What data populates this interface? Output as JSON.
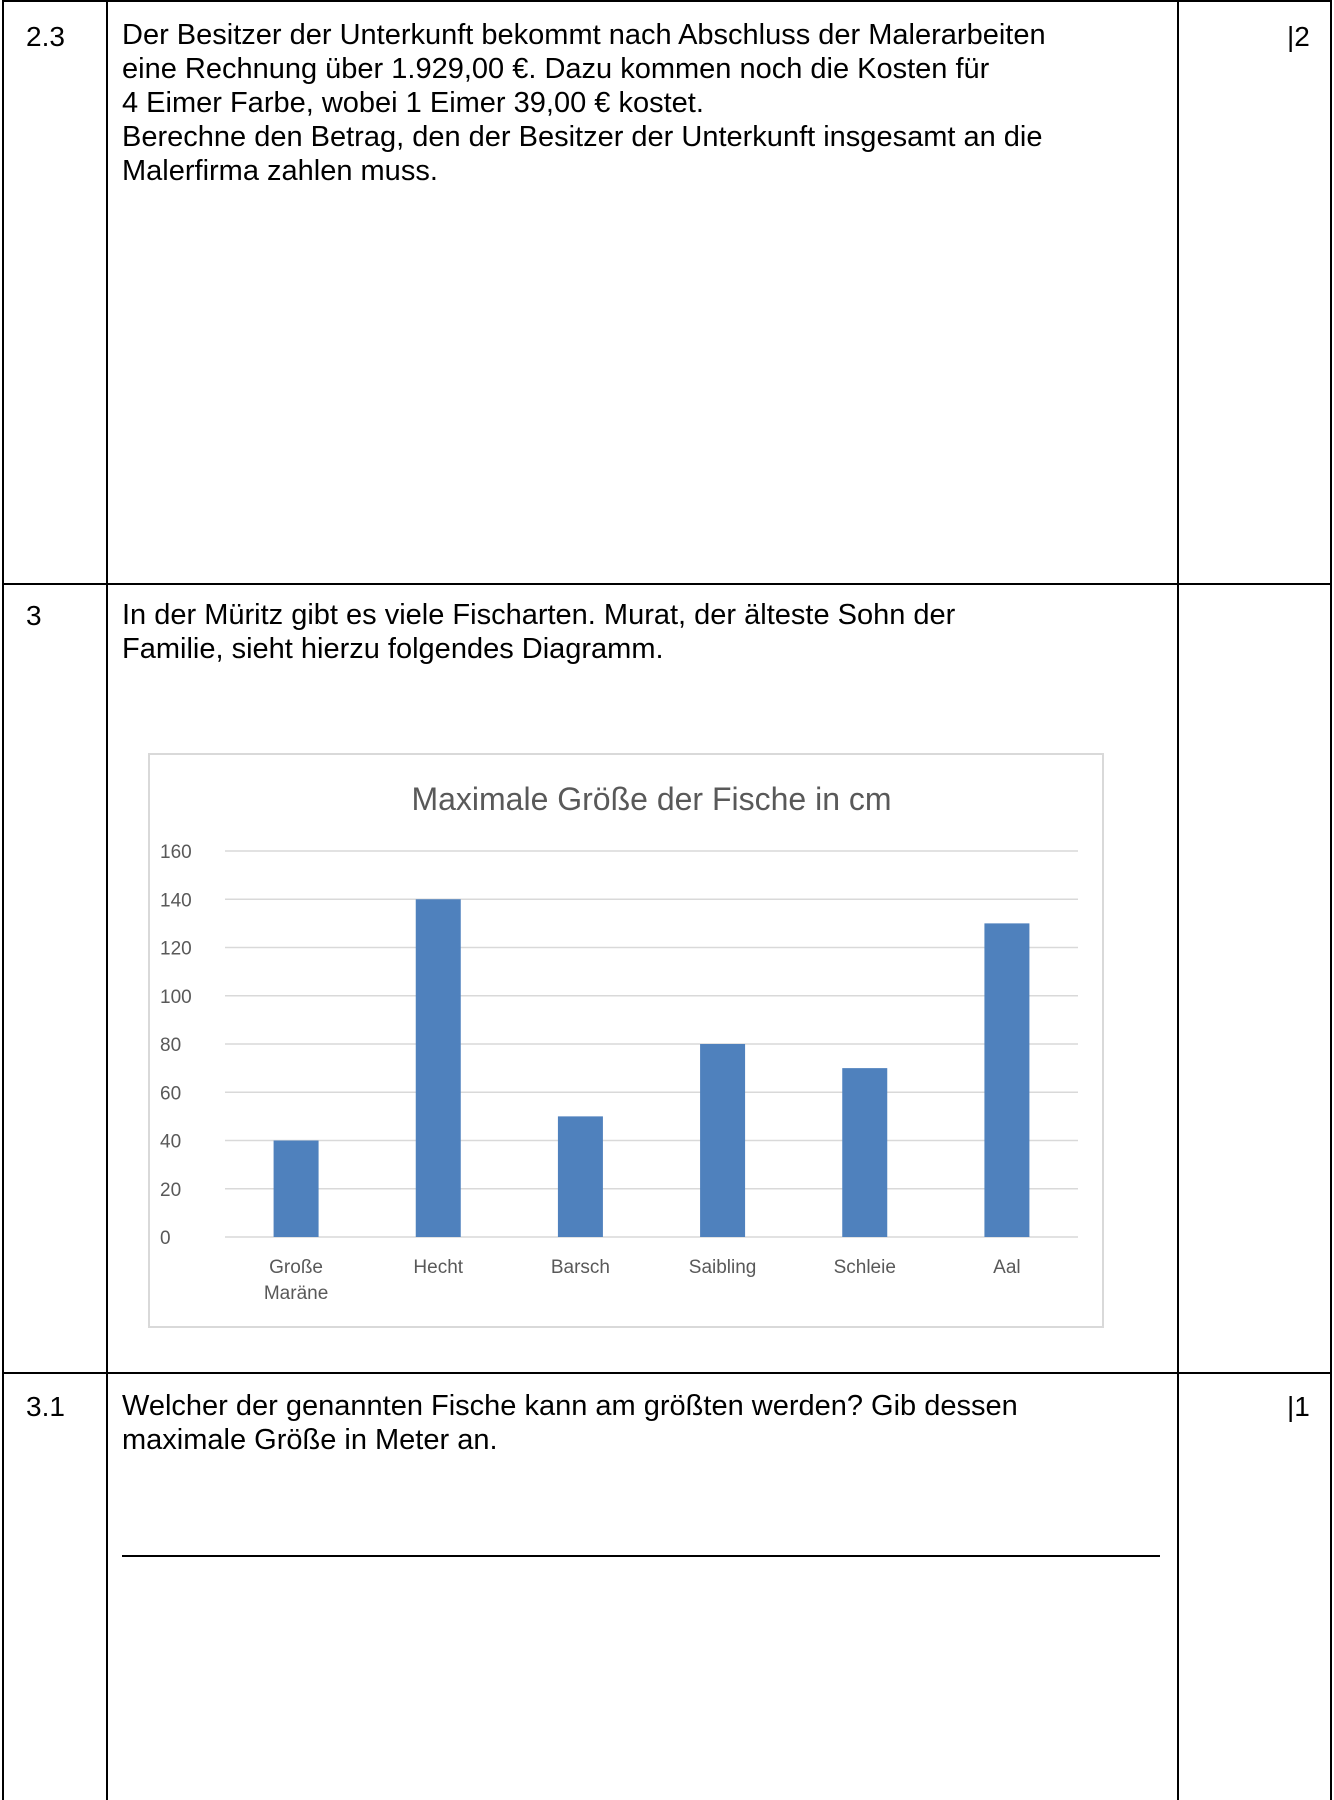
{
  "rows": [
    {
      "number": "2.3",
      "text": "Der Besitzer der Unterkunft bekommt nach Abschluss der Malerarbeiten\neine Rechnung über 1.929,00 €. Dazu kommen noch die Kosten für\n4 Eimer Farbe, wobei 1 Eimer 39,00 € kostet.\nBerechne den Betrag, den der Besitzer der Unterkunft insgesamt an die\nMalerfirma zahlen muss.",
      "points": "|2"
    },
    {
      "number": "3",
      "text": "In der Müritz gibt es viele Fischarten. Murat, der älteste Sohn der\nFamilie, sieht hierzu folgendes Diagramm.",
      "points": ""
    },
    {
      "number": "3.1",
      "text": "Welcher der genannten Fische kann am größten werden? Gib dessen\nmaximale Größe in Meter an.",
      "points": "|1"
    }
  ],
  "chart_data": {
    "type": "bar",
    "title": "Maximale Größe der Fische in cm",
    "categories": [
      "Große Maräne",
      "Hecht",
      "Barsch",
      "Saibling",
      "Schleie",
      "Aal"
    ],
    "category_lines": [
      [
        "Große",
        "Maräne"
      ],
      [
        "Hecht"
      ],
      [
        "Barsch"
      ],
      [
        "Saibling"
      ],
      [
        "Schleie"
      ],
      [
        "Aal"
      ]
    ],
    "values": [
      40,
      140,
      50,
      80,
      70,
      130
    ],
    "ylim": [
      0,
      160
    ],
    "yticks": [
      "0",
      "20",
      "40",
      "60",
      "80",
      "100",
      "120",
      "140",
      "160"
    ],
    "grid": true,
    "bar_color": "#4f81bd",
    "grid_color": "#d9d9d9",
    "tick_color": "#595959"
  }
}
